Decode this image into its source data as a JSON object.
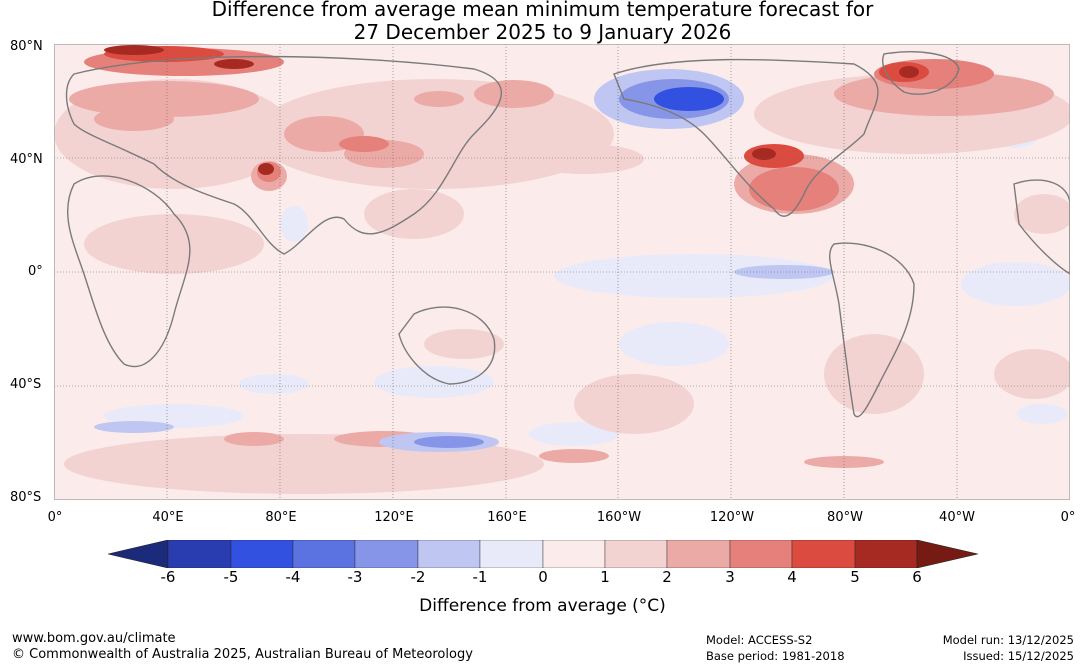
{
  "title": {
    "line1": "Difference from average mean minimum temperature forecast for",
    "line2": "27 December 2025 to 9 January 2026"
  },
  "map": {
    "lat_labels": [
      "80°N",
      "40°N",
      "0°",
      "40°S",
      "80°S"
    ],
    "lon_labels": [
      "0°",
      "40°E",
      "80°E",
      "120°E",
      "160°E",
      "160°W",
      "120°W",
      "80°W",
      "40°W",
      "0°"
    ],
    "anomaly_colors": {
      "-6": "#1b2a7a",
      "-5": "#2a3db0",
      "-4": "#3251e0",
      "-3": "#5b73e0",
      "-2": "#8795e8",
      "-1": "#bfc6f2",
      "0": "#e8eafa",
      "1": "#fbeceb",
      "2": "#f3d3d2",
      "3": "#ecaaa7",
      "4": "#e5807a",
      "5": "#db4b40",
      "6": "#a72a22",
      "7": "#761a14"
    }
  },
  "colorbar": {
    "ticks": [
      "-6",
      "-5",
      "-4",
      "-3",
      "-2",
      "-1",
      "0",
      "1",
      "2",
      "3",
      "4",
      "5",
      "6"
    ],
    "colors": [
      "#1b2a7a",
      "#2a3db0",
      "#3251e0",
      "#5b73e0",
      "#8795e8",
      "#bfc6f2",
      "#e8eafa",
      "#fbeceb",
      "#f3d3d2",
      "#ecaaa7",
      "#e5807a",
      "#db4b40",
      "#a72a22",
      "#761a14"
    ],
    "label": "Difference from average (°C)"
  },
  "footer": {
    "website": "www.bom.gov.au/climate",
    "copyright": "© Commonwealth of Australia 2025, Australian Bureau of Meteorology",
    "model": "Model: ACCESS-S2",
    "base_period": "Base period: 1981-2018",
    "model_run": "Model run: 13/12/2025",
    "issued": "Issued: 15/12/2025"
  }
}
